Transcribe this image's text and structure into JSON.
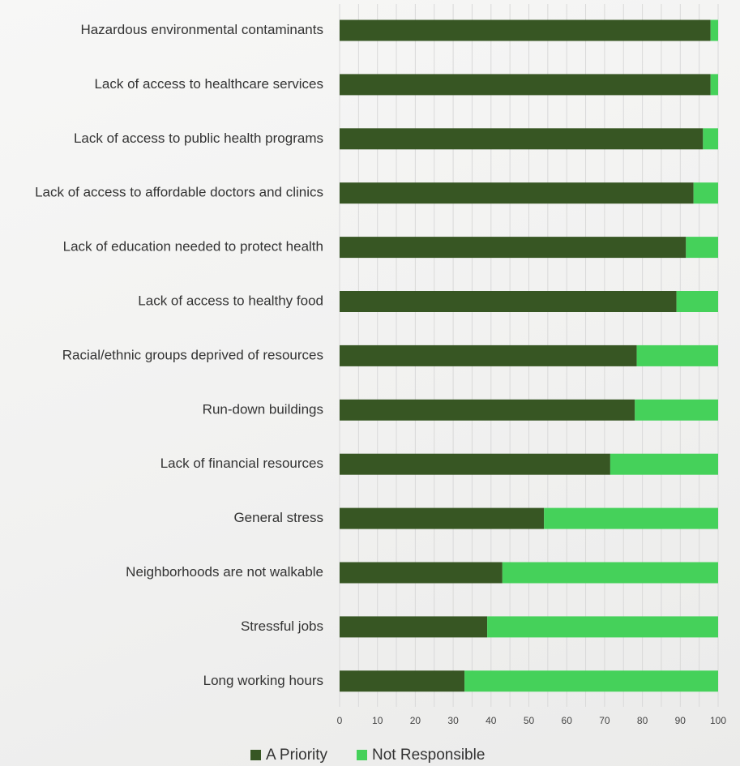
{
  "chart_data": {
    "type": "bar",
    "orientation": "horizontal",
    "stacked": true,
    "title": "",
    "xlabel": "",
    "ylabel": "",
    "xlim": [
      0,
      100
    ],
    "xticks": [
      0,
      10,
      20,
      30,
      40,
      50,
      60,
      70,
      80,
      90,
      100
    ],
    "grid": true,
    "legend_position": "bottom",
    "categories": [
      "Hazardous environmental contaminants",
      "Lack of access to healthcare services",
      "Lack of access to public health programs",
      "Lack of access to affordable doctors and clinics",
      "Lack of education needed to protect health",
      "Lack of access to healthy food",
      "Racial/ethnic groups deprived of resources",
      "Run-down buildings",
      "Lack of financial resources",
      "General stress",
      "Neighborhoods are not walkable",
      "Stressful jobs",
      "Long working hours"
    ],
    "series": [
      {
        "name": "A Priority",
        "color": "#375623",
        "values": [
          98,
          98,
          96,
          93.5,
          91.5,
          89,
          78.5,
          78,
          71.5,
          54,
          43,
          39,
          33
        ]
      },
      {
        "name": "Not Responsible",
        "color": "#45D15A",
        "values": [
          2,
          2,
          4,
          6.5,
          8.5,
          11,
          21.5,
          22,
          28.5,
          46,
          57,
          61,
          67
        ]
      }
    ]
  }
}
